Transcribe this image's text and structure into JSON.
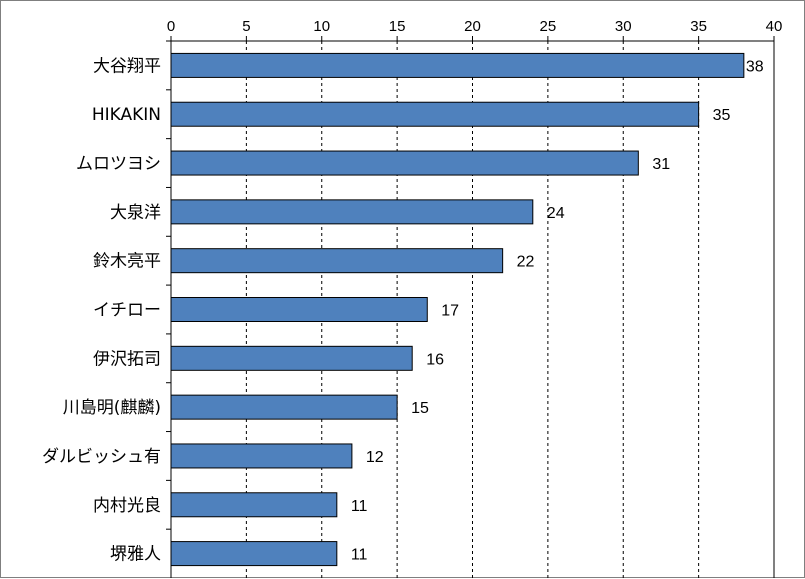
{
  "chart_data": {
    "type": "bar",
    "orientation": "horizontal",
    "title": "",
    "xlabel": "",
    "ylabel": "",
    "categories": [
      "大谷翔平",
      "HIKAKIN",
      "ムロツヨシ",
      "大泉洋",
      "鈴木亮平",
      "イチロー",
      "伊沢拓司",
      "川島明(麒麟)",
      "ダルビッシュ有",
      "内村光良",
      "堺雅人"
    ],
    "values": [
      38,
      35,
      31,
      24,
      22,
      17,
      16,
      15,
      12,
      11,
      11
    ],
    "xlim": [
      0,
      40
    ],
    "xticks": [
      0,
      5,
      10,
      15,
      20,
      25,
      30,
      35,
      40
    ],
    "axis_position": "top",
    "grid": "vertical dashed",
    "legend": "none",
    "bar_color": "#4f81bd",
    "bar_edge_color": "#000000"
  }
}
